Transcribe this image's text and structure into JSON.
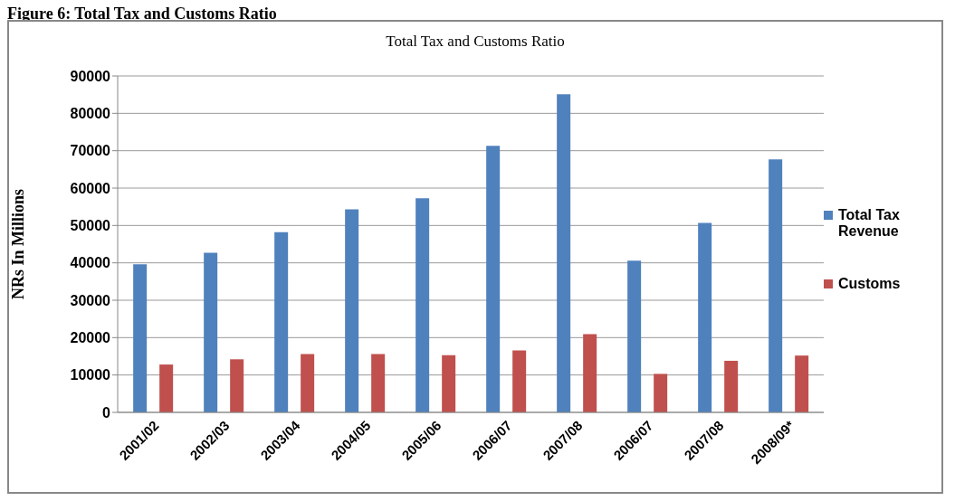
{
  "chart_data": {
    "type": "bar",
    "title": "Figure 6: Total Tax and Customs Ratio",
    "subtitle": "Total Tax  and Customs Ratio",
    "ylabel": "NRs  In Millions",
    "categories": [
      "2001/02",
      "2002/03",
      "2003/04",
      "2004/05",
      "2005/06",
      "2006/07",
      "2007/08",
      "2006/07",
      "2007/08",
      "2008/09*"
    ],
    "series": [
      {
        "name": "Total Tax Revenue",
        "color": "#4f81bd",
        "values": [
          39600,
          42700,
          48200,
          54300,
          57300,
          71300,
          85100,
          40600,
          50700,
          67700
        ]
      },
      {
        "name": "Customs",
        "color": "#c0504d",
        "values": [
          12800,
          14200,
          15600,
          15600,
          15300,
          16600,
          20900,
          10300,
          13800,
          15200
        ]
      }
    ],
    "ylim": [
      0,
      90000
    ],
    "yticks": [
      0,
      10000,
      20000,
      30000,
      40000,
      50000,
      60000,
      70000,
      80000,
      90000
    ],
    "grid": "y",
    "legend": "right"
  }
}
